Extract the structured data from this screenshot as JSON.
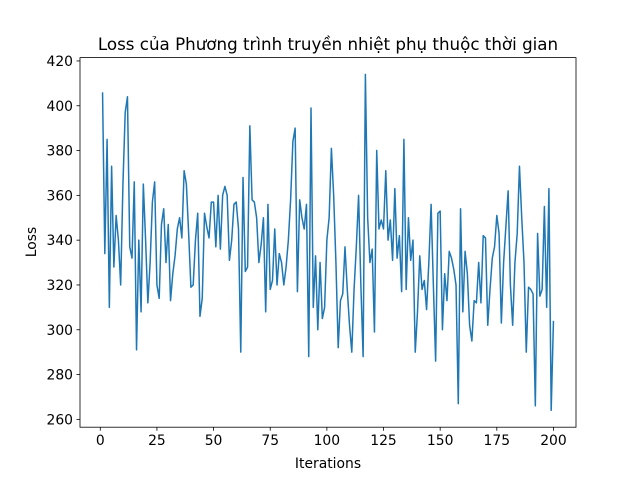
{
  "chart_data": {
    "type": "line",
    "title": "Loss của Phương trình truyền nhiệt phụ thuộc thời gian",
    "x_label": "Iterations",
    "y_label": "Loss",
    "color": "#1f77b4",
    "x": [
      1,
      2,
      3,
      4,
      5,
      6,
      7,
      8,
      9,
      10,
      11,
      12,
      13,
      14,
      15,
      16,
      17,
      18,
      19,
      20,
      21,
      22,
      23,
      24,
      25,
      26,
      27,
      28,
      29,
      30,
      31,
      32,
      33,
      34,
      35,
      36,
      37,
      38,
      39,
      40,
      41,
      42,
      43,
      44,
      45,
      46,
      47,
      48,
      49,
      50,
      51,
      52,
      53,
      54,
      55,
      56,
      57,
      58,
      59,
      60,
      61,
      62,
      63,
      64,
      65,
      66,
      67,
      68,
      69,
      70,
      71,
      72,
      73,
      74,
      75,
      76,
      77,
      78,
      79,
      80,
      81,
      82,
      83,
      84,
      85,
      86,
      87,
      88,
      89,
      90,
      91,
      92,
      93,
      94,
      95,
      96,
      97,
      98,
      99,
      100,
      101,
      102,
      103,
      104,
      105,
      106,
      107,
      108,
      109,
      110,
      111,
      112,
      113,
      114,
      115,
      116,
      117,
      118,
      119,
      120,
      121,
      122,
      123,
      124,
      125,
      126,
      127,
      128,
      129,
      130,
      131,
      132,
      133,
      134,
      135,
      136,
      137,
      138,
      139,
      140,
      141,
      142,
      143,
      144,
      145,
      146,
      147,
      148,
      149,
      150,
      151,
      152,
      153,
      154,
      155,
      156,
      157,
      158,
      159,
      160,
      161,
      162,
      163,
      164,
      165,
      166,
      167,
      168,
      169,
      170,
      171,
      172,
      173,
      174,
      175,
      176,
      177,
      178,
      179,
      180,
      181,
      182,
      183,
      184,
      185,
      186,
      187,
      188,
      189,
      190,
      191,
      192,
      193,
      194,
      195,
      196,
      197,
      198,
      199,
      200
    ],
    "values": [
      406,
      334,
      385,
      310,
      373,
      328,
      351,
      340,
      320,
      365,
      397,
      404,
      337,
      332,
      366,
      291,
      340,
      308,
      365,
      340,
      312,
      330,
      357,
      366,
      320,
      314,
      347,
      354,
      330,
      347,
      313,
      325,
      333,
      345,
      350,
      341,
      371,
      365,
      343,
      319,
      320,
      340,
      352,
      306,
      314,
      352,
      346,
      341,
      357,
      357,
      337,
      360,
      336,
      360,
      364,
      360,
      331,
      340,
      356,
      357,
      345,
      290,
      368,
      326,
      328,
      391,
      358,
      357,
      350,
      330,
      338,
      350,
      308,
      356,
      318,
      322,
      345,
      320,
      334,
      330,
      320,
      328,
      340,
      358,
      384,
      390,
      317,
      358,
      350,
      345,
      356,
      288,
      399,
      310,
      333,
      300,
      330,
      305,
      310,
      340,
      350,
      381,
      360,
      330,
      292,
      313,
      316,
      337,
      318,
      302,
      290,
      318,
      337,
      360,
      320,
      288,
      414,
      350,
      330,
      336,
      299,
      380,
      345,
      349,
      345,
      371,
      340,
      349,
      331,
      363,
      332,
      342,
      317,
      385,
      318,
      350,
      331,
      340,
      290,
      308,
      333,
      318,
      322,
      309,
      330,
      356,
      320,
      286,
      352,
      353,
      300,
      325,
      313,
      335,
      332,
      327,
      320,
      267,
      354,
      308,
      335,
      325,
      302,
      295,
      313,
      312,
      330,
      312,
      342,
      341,
      302,
      318,
      332,
      337,
      351,
      343,
      303,
      330,
      346,
      362,
      320,
      302,
      330,
      343,
      373,
      350,
      330,
      290,
      319,
      318,
      316,
      266,
      343,
      315,
      318,
      355,
      310,
      363,
      264,
      304
    ],
    "xlim": [
      -8.95,
      209.95
    ],
    "ylim": [
      256.5,
      421.5
    ],
    "xticks": [
      0,
      25,
      50,
      75,
      100,
      125,
      150,
      175,
      200
    ],
    "yticks": [
      260,
      280,
      300,
      320,
      340,
      360,
      380,
      400,
      420
    ]
  }
}
